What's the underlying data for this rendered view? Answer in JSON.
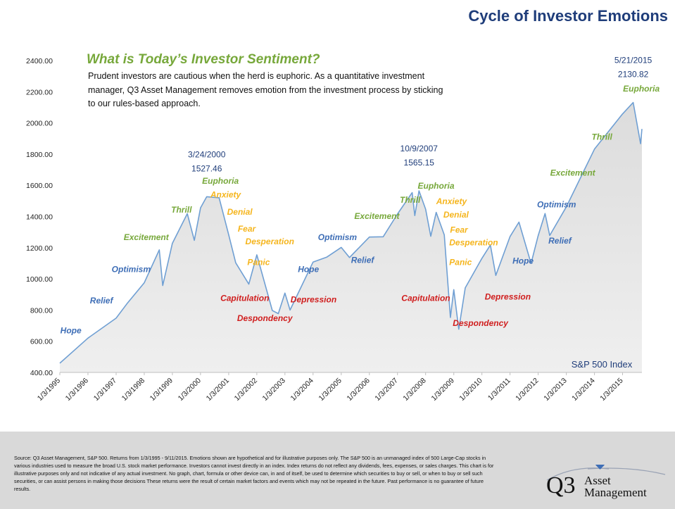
{
  "header": {
    "title": "Cycle of Investor Emotions"
  },
  "sentiment_box": {
    "heading": "What is Today’s Investor Sentiment?",
    "lines": [
      "Prudent investors are cautious when the herd is euphoric. As a quantitative investment",
      "manager, Q3 Asset Management removes emotion from the investment process by sticking",
      "to our rules-based approach."
    ]
  },
  "colors": {
    "title": "#1f3d7a",
    "line": "#6f9fd3",
    "area": "#e4e4e4",
    "green": "#77a83b",
    "yellow": "#f5b51d",
    "blue": "#3e6eb6",
    "red": "#d01e1e",
    "heading": "#77a83b"
  },
  "chart_data": {
    "type": "area",
    "series": [
      {
        "name": "S&P 500 Index",
        "x": [
          "1/3/1995",
          "1/3/1996",
          "1/3/1997",
          "6/1/1997",
          "1/3/1998",
          "7/17/1998",
          "8/31/1998",
          "1/3/1999",
          "7/16/1999",
          "10/15/1999",
          "1/3/2000",
          "3/24/2000",
          "9/1/2000",
          "1/3/2001",
          "4/4/2001",
          "9/21/2001",
          "1/3/2002",
          "7/23/2002",
          "10/9/2002",
          "1/3/2003",
          "3/11/2003",
          "1/3/2004",
          "7/1/2004",
          "1/3/2005",
          "4/20/2005",
          "1/3/2006",
          "7/1/2006",
          "1/3/2007",
          "7/13/2007",
          "8/16/2007",
          "10/9/2007",
          "1/3/2008",
          "3/10/2008",
          "5/19/2008",
          "9/1/2008",
          "11/20/2008",
          "1/3/2009",
          "3/9/2009",
          "6/1/2009",
          "1/3/2010",
          "4/23/2010",
          "7/2/2010",
          "1/3/2011",
          "4/29/2011",
          "10/3/2011",
          "1/3/2012",
          "4/2/2012",
          "6/1/2012",
          "1/3/2013",
          "1/3/2014",
          "1/3/2015",
          "5/21/2015",
          "8/25/2015",
          "9/11/2015"
        ],
        "values": [
          459,
          620,
          748,
          846,
          975,
          1186,
          957,
          1228,
          1418,
          1247,
          1455,
          1527,
          1520,
          1283,
          1103,
          966,
          1154,
          797,
          777,
          909,
          800,
          1108,
          1140,
          1202,
          1137,
          1268,
          1270,
          1416,
          1553,
          1406,
          1565,
          1447,
          1273,
          1426,
          1282,
          752,
          931,
          677,
          942,
          1132,
          1217,
          1022,
          1271,
          1364,
          1099,
          1277,
          1419,
          1278,
          1462,
          1832,
          2058,
          2131,
          1867,
          1961
        ]
      }
    ],
    "xlabel": "",
    "ylabel": "",
    "series_label": "S&P 500 Index",
    "x_ticks": [
      "1/3/1995",
      "1/3/1996",
      "1/3/1997",
      "1/3/1998",
      "1/3/1999",
      "1/3/2000",
      "1/3/2001",
      "1/3/2002",
      "1/3/2003",
      "1/3/2004",
      "1/3/2005",
      "1/3/2006",
      "1/3/2007",
      "1/3/2008",
      "1/3/2009",
      "1/3/2010",
      "1/3/2011",
      "1/3/2012",
      "1/3/2013",
      "1/3/2014",
      "1/3/2015"
    ],
    "y_ticks": [
      "400.00",
      "600.00",
      "800.00",
      "1000.00",
      "1200.00",
      "1400.00",
      "1600.00",
      "1800.00",
      "2000.00",
      "2200.00",
      "2400.00"
    ],
    "ylim": [
      400,
      2400
    ],
    "xlim": [
      "1/3/1995",
      "9/11/2015"
    ],
    "grid": "vertical",
    "peaks": [
      {
        "date_label": "3/24/2000",
        "value_label": "1527.46",
        "x": "3/24/2000",
        "y": 1527.46
      },
      {
        "date_label": "10/9/2007",
        "value_label": "1565.15",
        "x": "10/9/2007",
        "y": 1565.15
      },
      {
        "date_label": "5/21/2015",
        "value_label": "2130.82",
        "x": "5/21/2015",
        "y": 2130.82
      }
    ],
    "annotations": [
      {
        "text": "Hope",
        "color": "blue",
        "x": "1/9/1995",
        "y": 650
      },
      {
        "text": "Relief",
        "color": "blue",
        "x": "1/29/1996",
        "y": 843
      },
      {
        "text": "Optimism",
        "color": "blue",
        "x": "11/6/1996",
        "y": 1043
      },
      {
        "text": "Excitement",
        "color": "green",
        "x": "4/11/1997",
        "y": 1248
      },
      {
        "text": "Thrill",
        "color": "green",
        "x": "12/18/1998",
        "y": 1425
      },
      {
        "text": "Euphoria",
        "color": "green",
        "x": "1/24/2000",
        "y": 1610
      },
      {
        "text": "Anxiety",
        "color": "yellow",
        "x": "5/10/2000",
        "y": 1522
      },
      {
        "text": "Denial",
        "color": "yellow",
        "x": "12/13/2000",
        "y": 1411
      },
      {
        "text": "Fear",
        "color": "yellow",
        "x": "5/1/2001",
        "y": 1304
      },
      {
        "text": "Desperation",
        "color": "yellow",
        "x": "8/7/2001",
        "y": 1221
      },
      {
        "text": "Panic",
        "color": "yellow",
        "x": "9/2/2001",
        "y": 1088
      },
      {
        "text": "Capitulation",
        "color": "red",
        "x": "9/17/2000",
        "y": 859
      },
      {
        "text": "Despondency",
        "color": "red",
        "x": "4/22/2001",
        "y": 729
      },
      {
        "text": "Depression",
        "color": "red",
        "x": "3/17/2003",
        "y": 850
      },
      {
        "text": "Hope",
        "color": "blue",
        "x": "6/20/2003",
        "y": 1044
      },
      {
        "text": "Relief",
        "color": "blue",
        "x": "5/10/2005",
        "y": 1102
      },
      {
        "text": "Optimism",
        "color": "blue",
        "x": "3/7/2004",
        "y": 1248
      },
      {
        "text": "Excitement",
        "color": "green",
        "x": "6/22/2005",
        "y": 1384
      },
      {
        "text": "Thrill",
        "color": "green",
        "x": "2/2/2007",
        "y": 1487
      },
      {
        "text": "Euphoria",
        "color": "green",
        "x": "9/23/2007",
        "y": 1579
      },
      {
        "text": "Anxiety",
        "color": "yellow",
        "x": "5/20/2008",
        "y": 1479
      },
      {
        "text": "Denial",
        "color": "yellow",
        "x": "8/20/2008",
        "y": 1393
      },
      {
        "text": "Fear",
        "color": "yellow",
        "x": "11/15/2008",
        "y": 1297
      },
      {
        "text": "Desperation",
        "color": "yellow",
        "x": "11/5/2008",
        "y": 1216
      },
      {
        "text": "Panic",
        "color": "yellow",
        "x": "11/5/2008",
        "y": 1088
      },
      {
        "text": "Capitulation",
        "color": "red",
        "x": "2/23/2007",
        "y": 859
      },
      {
        "text": "Despondency",
        "color": "red",
        "x": "12/21/2008",
        "y": 697
      },
      {
        "text": "Depression",
        "color": "red",
        "x": "2/9/2010",
        "y": 868
      },
      {
        "text": "Hope",
        "color": "blue",
        "x": "2/4/2011",
        "y": 1097
      },
      {
        "text": "Relief",
        "color": "blue",
        "x": "5/15/2012",
        "y": 1227
      },
      {
        "text": "Optimism",
        "color": "blue",
        "x": "12/20/2011",
        "y": 1459
      },
      {
        "text": "Excitement",
        "color": "green",
        "x": "6/7/2012",
        "y": 1662
      },
      {
        "text": "Thrill",
        "color": "green",
        "x": "11/27/2013",
        "y": 1892
      },
      {
        "text": "Euphoria",
        "color": "green",
        "x": "1/9/2015",
        "y": 2202
      }
    ]
  },
  "footer": {
    "disclaimer": "Source: Q3 Asset Management, S&P 500. Returns from 1/3/1995 - 9/11/2015. Emotions shown are hypothetical and for illustrative purposes only. The S&P 500 is an unmanaged index of 500 Large-Cap stocks in various industries used to measure the broad U.S. stock market performance. Investors cannot invest directly in an index. Index returns do not reflect any dividends, fees, expenses, or sales charges. This chart is for illustrative purposes only and not indicative of any actual investment. No graph, chart, formula or other device can, in and of itself, be used to determine which securities to buy or sell, or when to buy or sell such securities, or can assist persons in making those decisions These returns were the result of certain market factors and events which may not be repeated in the future. Past performance is no guarantee of future results.",
    "logo_q3": "Q3",
    "logo_line1": "Asset",
    "logo_line2": "Management"
  }
}
